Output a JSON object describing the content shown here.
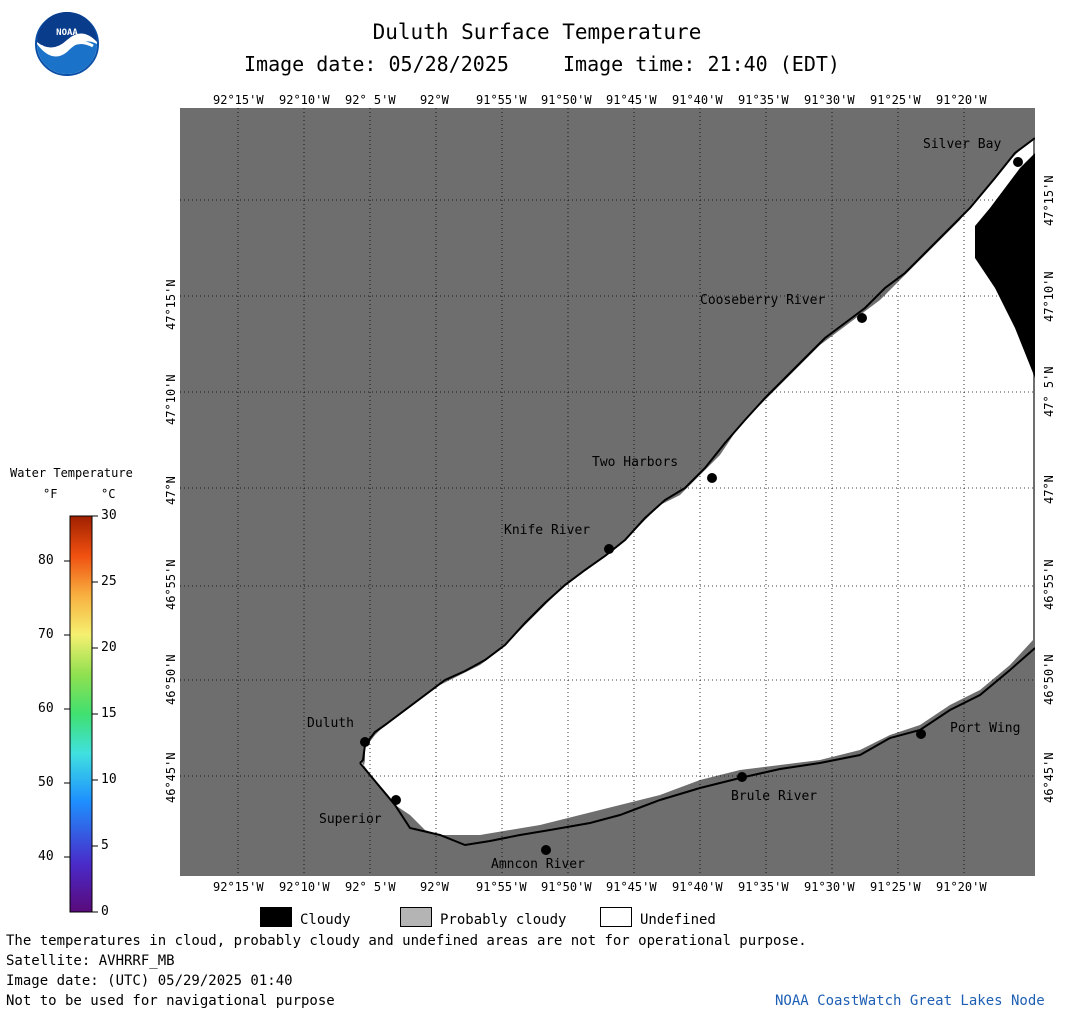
{
  "header": {
    "title": "Duluth Surface Temperature",
    "image_date_label": "Image date: 05/28/2025",
    "image_time_label": "Image time: 21:40 (EDT)"
  },
  "map": {
    "lon_labels": [
      "92°15'W",
      "92°10'W",
      "92° 5'W",
      "92°W",
      "91°55'W",
      "91°50'W",
      "91°45'W",
      "91°40'W",
      "91°35'W",
      "91°30'W",
      "91°25'W",
      "91°20'W"
    ],
    "lat_labels": [
      "47°15'N",
      "47°10'N",
      "47° 5'N",
      "47°N",
      "46°55'N",
      "46°50'N",
      "46°45'N"
    ],
    "places": [
      {
        "name": "Silver Bay"
      },
      {
        "name": "Cooseberry River"
      },
      {
        "name": "Two Harbors"
      },
      {
        "name": "Knife River"
      },
      {
        "name": "Duluth"
      },
      {
        "name": "Superior"
      },
      {
        "name": "Amncon River"
      },
      {
        "name": "Brule River"
      },
      {
        "name": "Port Wing"
      }
    ],
    "colors": {
      "land": "#6e6e6e",
      "water_undefined": "#ffffff",
      "cloud": "#000000",
      "grid": "#000000"
    }
  },
  "legend": {
    "title": "Water Temperature",
    "unit_f": "°F",
    "unit_c": "°C",
    "f_ticks": [
      "80",
      "70",
      "60",
      "50",
      "40"
    ],
    "c_ticks": [
      "30",
      "25",
      "20",
      "15",
      "10",
      "5",
      "0"
    ],
    "f_range": [
      32,
      86
    ],
    "c_range": [
      0,
      30
    ]
  },
  "key": {
    "cloudy": "Cloudy",
    "probably_cloudy": "Probably cloudy",
    "undefined": "Undefined"
  },
  "footer": {
    "disclaimer": "The temperatures in cloud, probably cloudy and undefined areas are not for operational purpose.",
    "satellite": "Satellite: AVHRRF_MB",
    "utc_date": "Image date: (UTC) 05/29/2025  01:40",
    "nav_warning": "Not to be used for navigational purpose",
    "credit": "NOAA CoastWatch Great Lakes Node"
  }
}
